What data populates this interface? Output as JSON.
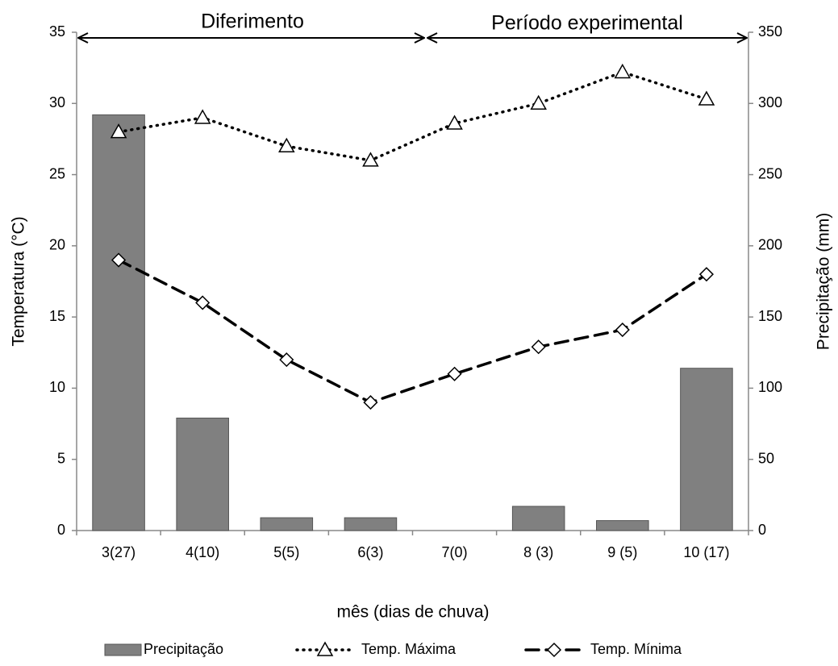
{
  "chart_data": {
    "type": "bar-line",
    "annotations": [
      "Diferimento",
      "Período experimental"
    ],
    "x_label": "mês (dias de chuva)",
    "y_label": "Temperatura (°C)",
    "y2_label": "Precipitação (mm)",
    "categories": [
      "3(27)",
      "4(10)",
      "5(5)",
      "6(3)",
      "7(0)",
      "8 (3)",
      "9 (5)",
      "10 (17)"
    ],
    "series": [
      {
        "name": "Precipitação",
        "type": "bar",
        "axis": "y2",
        "color": "#808080",
        "values": [
          292,
          79,
          9,
          9,
          0,
          17,
          7,
          114
        ]
      },
      {
        "name": "Temp. Máxima",
        "type": "line",
        "color": "#000000",
        "dash": "dotted",
        "marker": "triangle",
        "values": [
          28,
          29,
          27,
          26,
          28.6,
          30,
          32.2,
          30.3
        ]
      },
      {
        "name": "Temp. Mínima",
        "type": "line",
        "color": "#000000",
        "dash": "dashed",
        "marker": "diamond",
        "values": [
          19,
          16,
          12,
          9,
          11,
          12.9,
          14.1,
          18
        ]
      }
    ],
    "ylim": [
      0,
      35
    ],
    "yticks": [
      0,
      5,
      10,
      15,
      20,
      25,
      30,
      35
    ],
    "y2lim": [
      0,
      350
    ],
    "y2ticks": [
      0,
      50,
      100,
      150,
      200,
      250,
      300,
      350
    ],
    "grid": false,
    "legend": "bottom"
  }
}
